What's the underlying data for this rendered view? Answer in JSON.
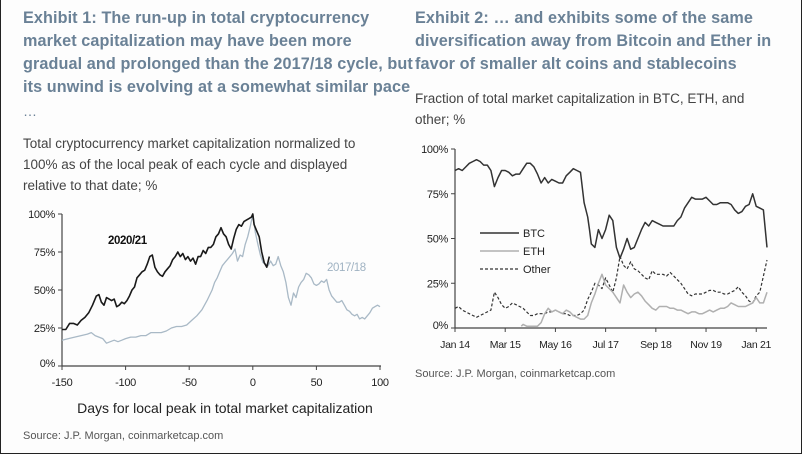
{
  "exhibit1": {
    "title_lines": [
      "Exhibit 1: The run-up in total cryptocurrency",
      "market capitalization may have been more",
      "gradual and prolonged than the 2017/18 cycle, but",
      "its unwind is evolving at a somewhat similar pace"
    ],
    "title_ellipsis": "…",
    "subtitle_lines": [
      "Total cryptocurrency market capitalization normalized to",
      "100% as of the local peak of each cycle and displayed",
      "relative to that date; %"
    ],
    "source": "Source: J.P. Morgan, coinmarketcap.com"
  },
  "exhibit2": {
    "title_lines": [
      "Exhibit 2: … and exhibits some of the same",
      "diversification away from Bitcoin and Ether in",
      "favor of smaller alt coins and stablecoins"
    ],
    "subtitle_lines": [
      "Fraction of total market capitalization in BTC, ETH, and",
      "other; %"
    ],
    "source": "Source: J.P. Morgan, coinmarketcap.com"
  },
  "colors": {
    "title": "#6a8196",
    "series_2020": "#1a1a1a",
    "series_2017": "#a9b9c6",
    "label_2017": "#9fb2c2",
    "btc": "#333333",
    "eth": "#b0b0b0",
    "other": "#333333"
  },
  "chart_data": [
    {
      "type": "line",
      "title": "",
      "xlabel": "Days for local peak in total market capitalization",
      "ylabel": "",
      "xlim": [
        -150,
        100
      ],
      "ylim": [
        0,
        100
      ],
      "xticks": [
        -150,
        -100,
        -50,
        0,
        50,
        100
      ],
      "xtick_labels": [
        "-150",
        "-100",
        "-50",
        "0",
        "50",
        "100"
      ],
      "yticks": [
        0,
        25,
        50,
        75,
        100
      ],
      "ytick_labels": [
        "0%",
        "25%",
        "50%",
        "75%",
        "100%"
      ],
      "grid": false,
      "series": [
        {
          "name": "2020/21",
          "label_position": "top-left",
          "x": [
            -150,
            -147,
            -144,
            -141,
            -138,
            -135,
            -132,
            -129,
            -126,
            -123,
            -121,
            -119,
            -117,
            -115,
            -113,
            -111,
            -109,
            -107,
            -105,
            -103,
            -101,
            -99,
            -97,
            -95,
            -93,
            -91,
            -89,
            -87,
            -85,
            -83,
            -81,
            -79,
            -77,
            -75,
            -73,
            -71,
            -69,
            -67,
            -65,
            -63,
            -61,
            -59,
            -57,
            -55,
            -53,
            -51,
            -49,
            -47,
            -45,
            -43,
            -41,
            -39,
            -37,
            -35,
            -33,
            -31,
            -29,
            -27,
            -25,
            -23,
            -21,
            -19,
            -17,
            -15,
            -13,
            -11,
            -9,
            -7,
            -5,
            -3,
            -1,
            0,
            1,
            3,
            5,
            7,
            9,
            11,
            13
          ],
          "values": [
            24,
            24,
            28,
            28,
            27,
            30,
            32,
            35,
            40,
            46,
            47,
            42,
            40,
            45,
            44,
            43,
            44,
            39,
            40,
            42,
            41,
            43,
            46,
            50,
            52,
            58,
            60,
            62,
            63,
            67,
            72,
            73,
            65,
            62,
            60,
            59,
            62,
            64,
            66,
            70,
            72,
            75,
            72,
            74,
            70,
            72,
            69,
            71,
            67,
            72,
            72,
            76,
            74,
            78,
            78,
            80,
            85,
            87,
            91,
            87,
            85,
            80,
            77,
            84,
            90,
            93,
            92,
            95,
            96,
            97,
            98,
            100,
            93,
            89,
            85,
            75,
            68,
            65,
            72
          ]
        },
        {
          "name": "2017/18",
          "label_position": "right",
          "x": [
            -150,
            -145,
            -140,
            -135,
            -130,
            -127,
            -124,
            -121,
            -118,
            -115,
            -112,
            -109,
            -106,
            -103,
            -100,
            -96,
            -92,
            -88,
            -84,
            -80,
            -76,
            -72,
            -68,
            -64,
            -60,
            -56,
            -52,
            -48,
            -44,
            -40,
            -36,
            -32,
            -30,
            -28,
            -26,
            -24,
            -22,
            -20,
            -18,
            -16,
            -14,
            -12,
            -10,
            -8,
            -6,
            -4,
            -2,
            0,
            2,
            4,
            6,
            8,
            10,
            12,
            14,
            16,
            18,
            20,
            22,
            24,
            26,
            28,
            30,
            32,
            34,
            36,
            38,
            40,
            42,
            44,
            46,
            48,
            50,
            52,
            54,
            56,
            58,
            60,
            62,
            64,
            66,
            68,
            70,
            72,
            74,
            76,
            78,
            80,
            82,
            84,
            86,
            88,
            90,
            92,
            94,
            96,
            98,
            100
          ],
          "values": [
            17,
            18,
            19,
            20,
            21,
            22,
            20,
            19,
            18,
            15,
            16,
            17,
            16,
            17,
            18,
            19,
            19,
            20,
            20,
            22,
            22,
            22,
            23,
            25,
            26,
            26,
            27,
            30,
            33,
            37,
            43,
            50,
            55,
            58,
            62,
            66,
            68,
            70,
            72,
            74,
            77,
            69,
            73,
            72,
            80,
            85,
            92,
            100,
            88,
            80,
            73,
            68,
            67,
            66,
            69,
            66,
            67,
            72,
            66,
            62,
            55,
            45,
            40,
            48,
            45,
            52,
            55,
            57,
            61,
            60,
            58,
            54,
            53,
            54,
            56,
            55,
            57,
            50,
            46,
            44,
            42,
            42,
            43,
            40,
            37,
            36,
            34,
            33,
            34,
            31,
            32,
            31,
            33,
            35,
            38,
            39,
            40,
            39
          ]
        }
      ]
    },
    {
      "type": "line",
      "title": "",
      "xlabel": "",
      "ylabel": "",
      "x_unit": "months since Jan 2014",
      "xlim": [
        0,
        87
      ],
      "ylim": [
        0,
        100
      ],
      "xticks": [
        0,
        14,
        28,
        42,
        56,
        70,
        84
      ],
      "xtick_labels": [
        "Jan 14",
        "Mar 15",
        "May 16",
        "Jul 17",
        "Sep 18",
        "Nov 19",
        "Jan 21"
      ],
      "yticks": [
        0,
        25,
        50,
        75,
        100
      ],
      "ytick_labels": [
        "0%",
        "25%",
        "50%",
        "75%",
        "100%"
      ],
      "grid": false,
      "legend": {
        "position": "center-left",
        "entries": [
          "BTC",
          "ETH",
          "Other"
        ]
      },
      "series": [
        {
          "name": "BTC",
          "style": "solid",
          "x": [
            0,
            1,
            2,
            3,
            4,
            5,
            6,
            7,
            8,
            9,
            10,
            11,
            12,
            13,
            14,
            15,
            16,
            17,
            18,
            19,
            20,
            21,
            22,
            23,
            24,
            25,
            26,
            27,
            28,
            29,
            30,
            31,
            32,
            33,
            34,
            35,
            36,
            37,
            37.5,
            38,
            39,
            40,
            41,
            42,
            43,
            44,
            45,
            46,
            47,
            48,
            49,
            50,
            51,
            52,
            53,
            54,
            55,
            56,
            57,
            58,
            59,
            60,
            61,
            62,
            63,
            64,
            65,
            66,
            67,
            68,
            69,
            70,
            71,
            72,
            73,
            74,
            75,
            76,
            77,
            78,
            79,
            80,
            81,
            82,
            83,
            84,
            85,
            86,
            87
          ],
          "values": [
            88,
            89,
            88,
            90,
            92,
            93,
            94,
            93,
            91,
            91,
            88,
            79,
            84,
            88,
            88,
            87,
            85,
            86,
            86,
            89,
            92,
            92,
            90,
            86,
            81,
            84,
            81,
            83,
            82,
            81,
            81,
            85,
            87,
            89,
            88,
            87,
            70,
            62,
            55,
            47,
            45,
            55,
            50,
            55,
            63,
            60,
            45,
            39,
            44,
            50,
            44,
            45,
            50,
            55,
            59,
            57,
            60,
            59,
            58,
            57,
            57,
            57,
            57,
            60,
            62,
            67,
            70,
            73,
            72,
            72,
            72,
            73,
            71,
            69,
            69,
            70,
            70,
            70,
            69,
            66,
            64,
            65,
            68,
            69,
            75,
            68,
            67,
            66,
            45
          ]
        },
        {
          "name": "ETH",
          "style": "solid",
          "x": [
            18.5,
            19,
            20,
            21,
            22,
            23,
            24,
            25,
            26,
            27,
            28,
            29,
            30,
            31,
            32,
            33,
            34,
            35,
            36,
            37,
            38,
            39,
            40,
            41,
            42,
            43,
            44,
            45,
            46,
            47,
            48,
            49,
            50,
            51,
            52,
            53,
            54,
            55,
            56,
            57,
            58,
            59,
            60,
            61,
            62,
            63,
            64,
            65,
            66,
            67,
            68,
            69,
            70,
            71,
            72,
            73,
            74,
            75,
            76,
            77,
            78,
            79,
            80,
            81,
            82,
            83,
            84,
            85,
            86,
            87
          ],
          "values": [
            1,
            2,
            1,
            1,
            1,
            1,
            3,
            8,
            11,
            9,
            10,
            9,
            8,
            10,
            9,
            7,
            6,
            5,
            5,
            7,
            14,
            19,
            25,
            30,
            24,
            22,
            20,
            17,
            14,
            24,
            20,
            17,
            19,
            20,
            18,
            15,
            13,
            11,
            10,
            12,
            12,
            12,
            11,
            11,
            10,
            10,
            9,
            8,
            9,
            9,
            8,
            8,
            9,
            10,
            9,
            10,
            11,
            11,
            12,
            14,
            13,
            12,
            12,
            12,
            13,
            14,
            17,
            14,
            14,
            20
          ]
        },
        {
          "name": "Other",
          "style": "dashed",
          "x": [
            0,
            1,
            2,
            3,
            4,
            5,
            6,
            7,
            8,
            9,
            10,
            11,
            12,
            13,
            14,
            15,
            16,
            17,
            18,
            19,
            20,
            21,
            22,
            23,
            24,
            25,
            26,
            27,
            28,
            29,
            30,
            31,
            32,
            33,
            34,
            35,
            36,
            37,
            38,
            39,
            40,
            41,
            42,
            43,
            44,
            45,
            46,
            47,
            48,
            49,
            50,
            51,
            52,
            53,
            54,
            55,
            56,
            57,
            58,
            59,
            60,
            61,
            62,
            63,
            64,
            65,
            66,
            67,
            68,
            69,
            70,
            71,
            72,
            73,
            74,
            75,
            76,
            77,
            78,
            79,
            80,
            81,
            82,
            83,
            84,
            85,
            86,
            87
          ],
          "values": [
            11,
            12,
            10,
            9,
            8,
            7,
            6,
            7,
            8,
            9,
            10,
            20,
            17,
            13,
            11,
            12,
            14,
            13,
            12,
            11,
            9,
            7,
            7,
            8,
            8,
            8,
            9,
            9,
            10,
            9,
            8,
            8,
            7,
            7,
            7,
            8,
            10,
            16,
            20,
            25,
            24,
            22,
            28,
            24,
            20,
            28,
            40,
            35,
            33,
            37,
            33,
            32,
            30,
            28,
            27,
            32,
            30,
            30,
            30,
            29,
            31,
            29,
            27,
            25,
            22,
            19,
            18,
            19,
            19,
            19,
            20,
            21,
            21,
            20,
            20,
            19,
            19,
            20,
            21,
            23,
            20,
            18,
            15,
            14,
            18,
            20,
            29,
            38
          ]
        }
      ]
    }
  ]
}
